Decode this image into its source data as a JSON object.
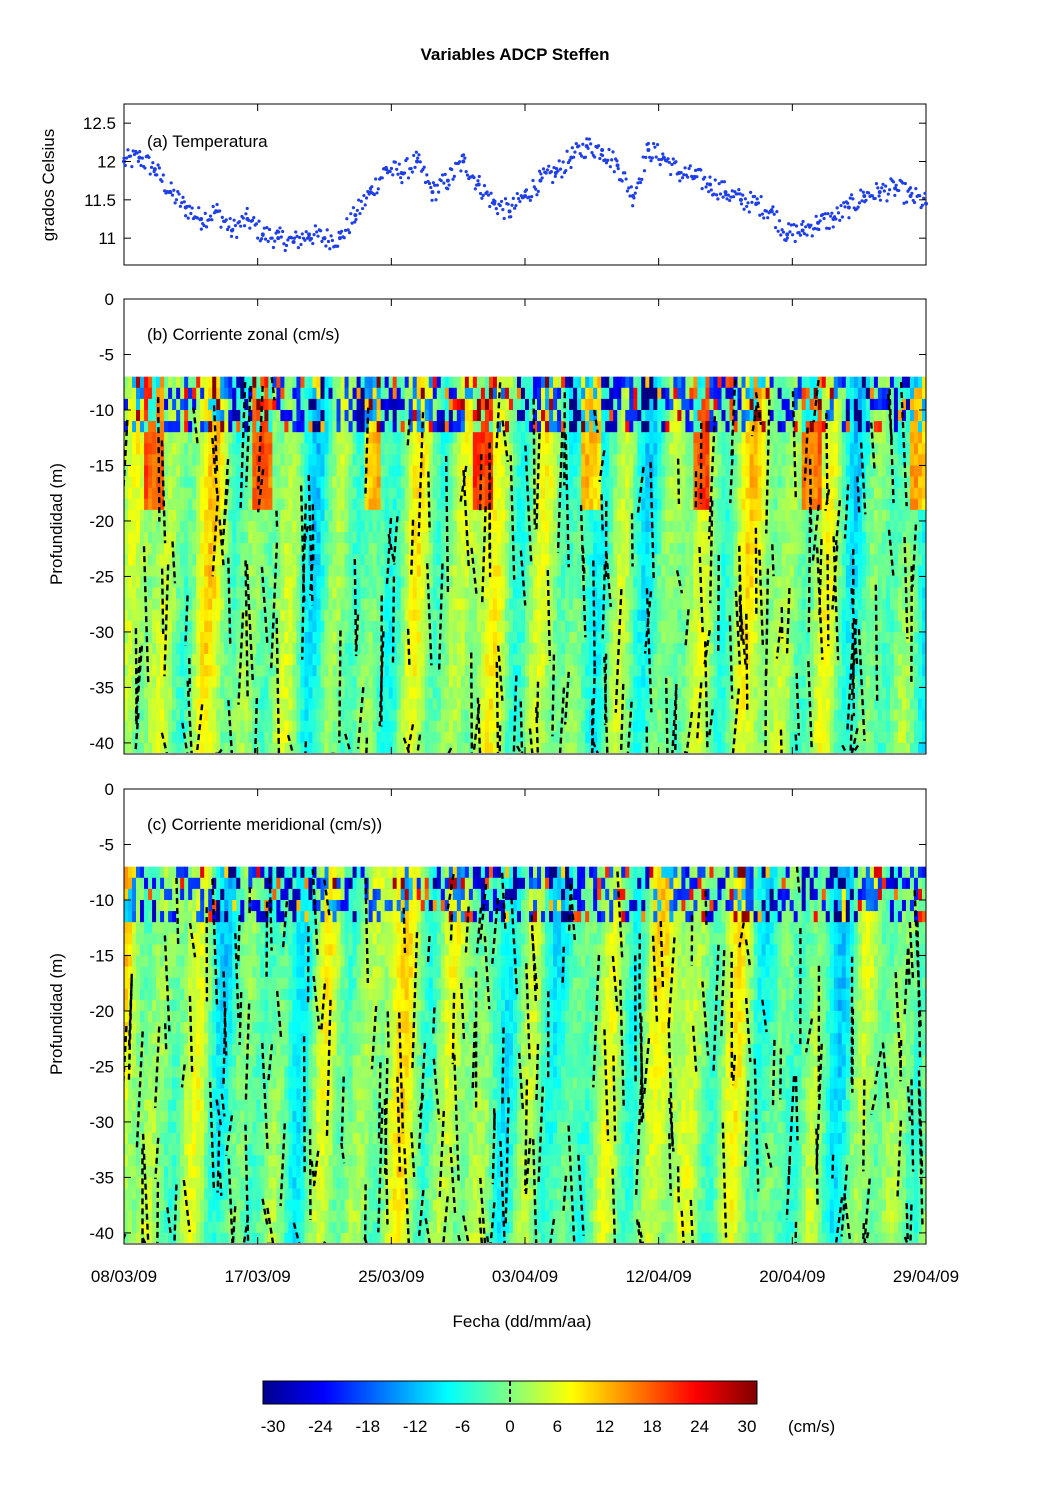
{
  "figure": {
    "title": "Variables ADCP Steffen",
    "xlabel": "Fecha (dd/mm/aa)",
    "x_ticks": [
      "08/03/09",
      "17/03/09",
      "25/03/09",
      "03/04/09",
      "12/04/09",
      "20/04/09",
      "29/04/09"
    ]
  },
  "chart_data": [
    {
      "type": "scatter",
      "panel_label": "(a) Temperatura",
      "ylabel": "grados Celsius",
      "y_ticks": [
        "12.5",
        "12",
        "11.5",
        "11"
      ],
      "ylim": [
        10.65,
        12.75
      ],
      "xlim": [
        "2009-03-08",
        "2009-04-29"
      ],
      "color": "#1f3fe6",
      "series": [
        {
          "x": "2009-03-08",
          "y": 12.0
        },
        {
          "x": "2009-03-09",
          "y": 12.05
        },
        {
          "x": "2009-03-10",
          "y": 11.9
        },
        {
          "x": "2009-03-11",
          "y": 11.6
        },
        {
          "x": "2009-03-12",
          "y": 11.4
        },
        {
          "x": "2009-03-13",
          "y": 11.25
        },
        {
          "x": "2009-03-14",
          "y": 11.35
        },
        {
          "x": "2009-03-15",
          "y": 11.1
        },
        {
          "x": "2009-03-16",
          "y": 11.25
        },
        {
          "x": "2009-03-17",
          "y": 11.05
        },
        {
          "x": "2009-03-18",
          "y": 11.0
        },
        {
          "x": "2009-03-19",
          "y": 10.95
        },
        {
          "x": "2009-03-20",
          "y": 11.05
        },
        {
          "x": "2009-03-21",
          "y": 11.0
        },
        {
          "x": "2009-03-22",
          "y": 11.0
        },
        {
          "x": "2009-03-23",
          "y": 11.3
        },
        {
          "x": "2009-03-24",
          "y": 11.6
        },
        {
          "x": "2009-03-25",
          "y": 11.9
        },
        {
          "x": "2009-03-26",
          "y": 11.85
        },
        {
          "x": "2009-03-27",
          "y": 12.0
        },
        {
          "x": "2009-03-28",
          "y": 11.6
        },
        {
          "x": "2009-03-29",
          "y": 11.75
        },
        {
          "x": "2009-03-30",
          "y": 12.0
        },
        {
          "x": "2009-03-31",
          "y": 11.7
        },
        {
          "x": "2009-04-01",
          "y": 11.45
        },
        {
          "x": "2009-04-02",
          "y": 11.35
        },
        {
          "x": "2009-04-03",
          "y": 11.55
        },
        {
          "x": "2009-04-04",
          "y": 11.75
        },
        {
          "x": "2009-04-05",
          "y": 11.85
        },
        {
          "x": "2009-04-06",
          "y": 12.05
        },
        {
          "x": "2009-04-07",
          "y": 12.2
        },
        {
          "x": "2009-04-08",
          "y": 12.15
        },
        {
          "x": "2009-04-09",
          "y": 11.95
        },
        {
          "x": "2009-04-10",
          "y": 11.55
        },
        {
          "x": "2009-04-11",
          "y": 12.15
        },
        {
          "x": "2009-04-12",
          "y": 12.05
        },
        {
          "x": "2009-04-13",
          "y": 11.85
        },
        {
          "x": "2009-04-14",
          "y": 11.8
        },
        {
          "x": "2009-04-15",
          "y": 11.7
        },
        {
          "x": "2009-04-16",
          "y": 11.6
        },
        {
          "x": "2009-04-17",
          "y": 11.5
        },
        {
          "x": "2009-04-18",
          "y": 11.45
        },
        {
          "x": "2009-04-19",
          "y": 11.35
        },
        {
          "x": "2009-04-20",
          "y": 11.05
        },
        {
          "x": "2009-04-21",
          "y": 11.1
        },
        {
          "x": "2009-04-22",
          "y": 11.2
        },
        {
          "x": "2009-04-23",
          "y": 11.25
        },
        {
          "x": "2009-04-24",
          "y": 11.4
        },
        {
          "x": "2009-04-25",
          "y": 11.55
        },
        {
          "x": "2009-04-26",
          "y": 11.6
        },
        {
          "x": "2009-04-27",
          "y": 11.65
        },
        {
          "x": "2009-04-28",
          "y": 11.55
        },
        {
          "x": "2009-04-29",
          "y": 11.45
        }
      ]
    },
    {
      "type": "heatmap",
      "panel_label": "(b) Corriente zonal (cm/s)",
      "ylabel": "Profundidad (m)",
      "y_ticks": [
        "0",
        "-5",
        "-10",
        "-15",
        "-20",
        "-25",
        "-30",
        "-35",
        "-40"
      ],
      "ylim": [
        -41,
        0
      ],
      "data_depth_range": [
        -41,
        -7
      ],
      "xlim": [
        "2009-03-08",
        "2009-04-29"
      ],
      "zero_contour": "dashed black"
    },
    {
      "type": "heatmap",
      "panel_label": "(c) Corriente meridional (cm/s))",
      "ylabel": "Profundidad (m)",
      "y_ticks": [
        "0",
        "-5",
        "-10",
        "-15",
        "-20",
        "-25",
        "-30",
        "-35",
        "-40"
      ],
      "ylim": [
        -41,
        0
      ],
      "data_depth_range": [
        -41,
        -7
      ],
      "xlim": [
        "2009-03-08",
        "2009-04-29"
      ],
      "zero_contour": "dashed black"
    }
  ],
  "colorbar": {
    "ticks": [
      "-30",
      "-24",
      "-18",
      "-12",
      "-6",
      "0",
      "6",
      "12",
      "18",
      "24",
      "30"
    ],
    "range": [
      -30,
      30
    ],
    "unit": "(cm/s)",
    "colormap": "jet",
    "colors": [
      "#00008f",
      "#0050ff",
      "#00dfff",
      "#80ff80",
      "#ffdf00",
      "#ff5000",
      "#8f0000"
    ]
  }
}
